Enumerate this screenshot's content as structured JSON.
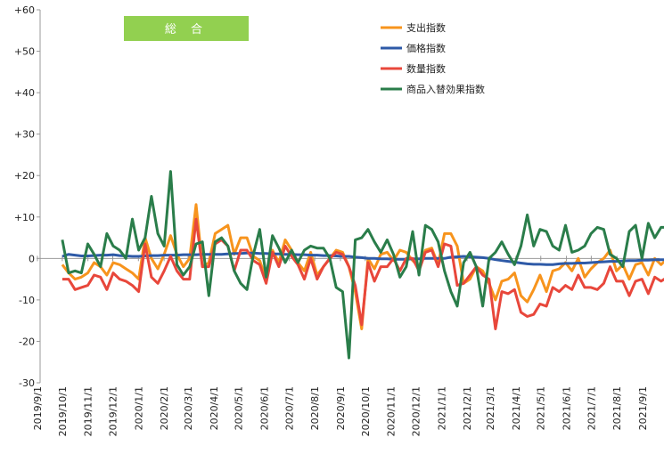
{
  "chart_data": {
    "type": "line",
    "title": "総 合",
    "title_bg_color": "#92d050",
    "ylim": [
      -30,
      60
    ],
    "y_ticks": [
      "+60",
      "+50",
      "+40",
      "+30",
      "+20",
      "+10",
      "0",
      "-10",
      "-20",
      "-30"
    ],
    "x_ticks": [
      "2019/9/1",
      "2019/10/1",
      "2019/11/1",
      "2019/12/1",
      "2020/1/1",
      "2020/2/1",
      "2020/3/1",
      "2020/4/1",
      "2020/5/1",
      "2020/6/1",
      "2020/7/1",
      "2020/8/1",
      "2020/9/1",
      "2020/10/1",
      "2020/11/1",
      "2020/12/1",
      "2021/1/1",
      "2021/2/1",
      "2021/3/1",
      "2021/4/1",
      "2021/5/1",
      "2021/6/1",
      "2021/7/1",
      "2021/8/1",
      "2021/9/1"
    ],
    "x_start": "2019/10/1",
    "x_end": "2021/10/1",
    "grid": false,
    "legend_position": "top-right",
    "series": [
      {
        "name": "支出指数",
        "color": "#f7941d",
        "values": [
          -1.5,
          -3.5,
          -5,
          -4.5,
          -3.5,
          -1,
          -2,
          -4,
          -1,
          -1.5,
          -2.5,
          -3.5,
          -5,
          5,
          0,
          -2.5,
          1,
          5.5,
          1,
          -2,
          0,
          13,
          -2,
          -1,
          6,
          7,
          8,
          1,
          5,
          5,
          0.5,
          -0.5,
          -5,
          2,
          -1,
          4.5,
          2,
          -1,
          -3,
          1.5,
          -4,
          -2,
          0,
          2,
          1.5,
          -2,
          -8,
          -17,
          0,
          -2.5,
          1,
          1.5,
          -0.5,
          2,
          1.5,
          -0.5,
          -2,
          2,
          2.5,
          -1.5,
          6,
          6,
          3,
          -6,
          -5,
          -2,
          -3,
          -6,
          -10,
          -5.5,
          -5,
          -3.5,
          -9,
          -10.5,
          -7.5,
          -4,
          -8,
          -3,
          -2.5,
          -1,
          -3,
          0,
          -4.5,
          -2.5,
          -1,
          0,
          2,
          -3,
          -1.5,
          -5,
          -1.5,
          -1,
          -4,
          0,
          -1.5,
          0
        ]
      },
      {
        "name": "価格指数",
        "color": "#2e5aa7",
        "values": [
          0.5,
          1,
          0.8,
          0.6,
          0.6,
          0.7,
          0.8,
          0.8,
          0.9,
          0.7,
          0.6,
          0.5,
          0.5,
          0.6,
          0.7,
          0.7,
          0.8,
          0.8,
          0.8,
          0.9,
          0.9,
          0.9,
          1,
          1,
          1,
          1,
          1.1,
          1.2,
          1.2,
          1.3,
          1.3,
          1.2,
          1.2,
          1.1,
          1.1,
          1,
          1,
          0.9,
          0.9,
          0.8,
          0.8,
          0.7,
          0.7,
          0.6,
          0.5,
          0.5,
          0.3,
          0.2,
          0,
          0,
          -0.1,
          -0.1,
          -0.2,
          -0.2,
          -0.2,
          -0.1,
          -0.1,
          0,
          0,
          0,
          0,
          0.3,
          0.4,
          0.5,
          0.4,
          0.3,
          0.2,
          0,
          -0.3,
          -0.5,
          -0.7,
          -0.9,
          -1.1,
          -1.3,
          -1.4,
          -1.4,
          -1.5,
          -1.5,
          -1.3,
          -1.2,
          -1.2,
          -1.1,
          -1.1,
          -1,
          -0.9,
          -0.8,
          -0.7,
          -0.7,
          -0.6,
          -0.5,
          -0.5,
          -0.4,
          -0.4,
          -0.3,
          -0.3,
          -0.3
        ]
      },
      {
        "name": "数量指数",
        "color": "#e8473b",
        "values": [
          -5,
          -5,
          -7.5,
          -7,
          -6.5,
          -4,
          -4.5,
          -7.5,
          -3.5,
          -5,
          -5.5,
          -6.5,
          -8,
          3.5,
          -4.5,
          -6,
          -3,
          0.5,
          -3,
          -5,
          -5,
          9.5,
          -2,
          -2,
          3.5,
          4.5,
          3,
          -3,
          2,
          2,
          -0.5,
          -1.5,
          -6,
          1.5,
          -2,
          3,
          0.5,
          -1.5,
          -5,
          0,
          -5,
          -2,
          0,
          1.5,
          1,
          -2,
          -6.5,
          -16,
          -1,
          -5.5,
          -2,
          -2,
          0,
          -3,
          0,
          0,
          -3,
          1.5,
          2,
          -2,
          3.5,
          3,
          -6.5,
          -6,
          -4,
          -2,
          -4,
          -5,
          -17,
          -8,
          -8.5,
          -7.5,
          -13,
          -14,
          -13.5,
          -11,
          -11.5,
          -7,
          -8,
          -6.5,
          -7.5,
          -4,
          -7,
          -7,
          -7.5,
          -6,
          -2,
          -5.5,
          -5.5,
          -9,
          -5.5,
          -5,
          -8.5,
          -4.5,
          -5.5,
          -4.5
        ]
      },
      {
        "name": "商品入替効果指数",
        "color": "#2a7d4a",
        "values": [
          4.5,
          -3.5,
          -3,
          -3.5,
          3.5,
          1,
          -2,
          6,
          3,
          2,
          0,
          9.5,
          2,
          5,
          15,
          6,
          3,
          21,
          -1.5,
          -4,
          -2,
          3.5,
          4,
          -9,
          4,
          5,
          3,
          -3,
          -6,
          -7.5,
          1,
          7,
          -4.5,
          5.5,
          2.5,
          -1,
          2,
          -1,
          2,
          3,
          2.5,
          2.5,
          0,
          -7,
          -8,
          -24,
          4.5,
          5,
          7,
          4,
          1.5,
          4.5,
          1,
          -4.5,
          -2,
          6.5,
          -4,
          8,
          7,
          4,
          -3,
          -8,
          -11.5,
          -1,
          1.5,
          -2,
          -11.5,
          0,
          1.5,
          4,
          1,
          -1.5,
          3,
          10.5,
          3,
          7,
          6.5,
          3,
          2,
          8,
          1.5,
          2,
          3,
          6,
          7.5,
          7,
          1,
          0,
          -2,
          6.5,
          8,
          0,
          8.5,
          5,
          7.5,
          7.5
        ]
      }
    ]
  }
}
